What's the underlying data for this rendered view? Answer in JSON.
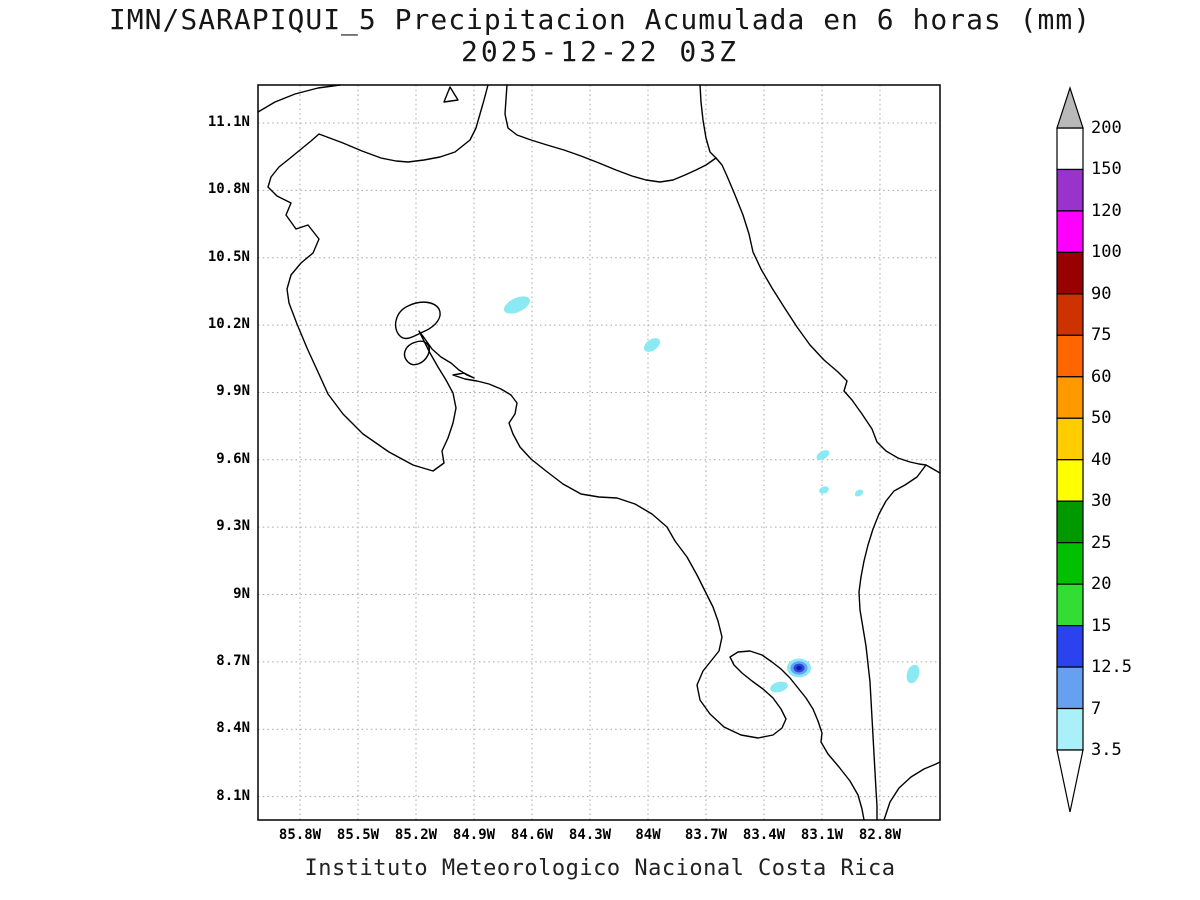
{
  "title": {
    "line1": "IMN/SARAPIQUI_5 Precipitacion Acumulada en 6 horas (mm)",
    "line2": "2025-12-22 03Z"
  },
  "caption": "Instituto Meteorologico Nacional Costa Rica",
  "axes": {
    "lat_ticks": [
      "11.1N",
      "10.8N",
      "10.5N",
      "10.2N",
      "9.9N",
      "9.6N",
      "9.3N",
      "9N",
      "8.7N",
      "8.4N",
      "8.1N"
    ],
    "lon_ticks": [
      "85.8W",
      "85.5W",
      "85.2W",
      "84.9W",
      "84.6W",
      "84.3W",
      "84W",
      "83.7W",
      "83.4W",
      "83.1W",
      "82.8W"
    ]
  },
  "colorbar": {
    "labels": [
      "200",
      "150",
      "120",
      "100",
      "90",
      "75",
      "60",
      "50",
      "40",
      "30",
      "25",
      "20",
      "15",
      "12.5",
      "7",
      "3.5"
    ],
    "segment_colors": [
      "#ffffff",
      "#9933cc",
      "#ff00ff",
      "#990000",
      "#cc3300",
      "#ff6600",
      "#ff9900",
      "#ffcc00",
      "#ffff00",
      "#009900",
      "#00c000",
      "#33dd33",
      "#2b43ee",
      "#66a0f0",
      "#aaf0f8"
    ],
    "top_arrow_color": "#b9b9b9",
    "bottom_arrow_color": "#ffffff"
  },
  "map": {
    "coast_color": "#000000",
    "precip_light_color": "#8ae9f2",
    "precip_mid_color": "#66a0f0",
    "precip_high_color": "#2b43ee",
    "precip_core_color": "#131f8f"
  }
}
